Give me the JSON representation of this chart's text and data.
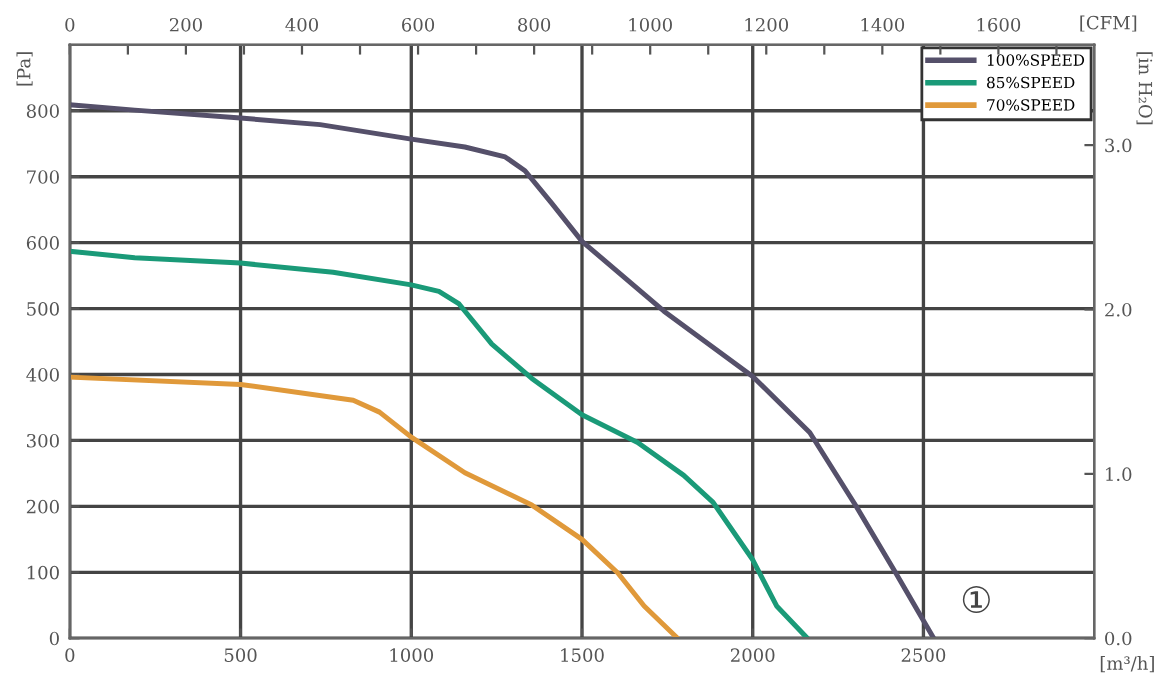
{
  "chart_data": {
    "type": "line",
    "xlabel": "[m³/h]",
    "ylabel": "[Pa]",
    "y2label": "[in H₂O]",
    "x2label": "[CFM]",
    "xlim": [
      0,
      3000
    ],
    "xticks": [
      0,
      500,
      1000,
      1500,
      2000,
      2500
    ],
    "ylim": [
      0,
      900
    ],
    "yticks": [
      0,
      100,
      200,
      300,
      400,
      500,
      600,
      700,
      800
    ],
    "y2lim": [
      0,
      3.61
    ],
    "y2ticks": [
      {
        "value": 0,
        "label": "0.0"
      },
      {
        "value": 1,
        "label": "1.0"
      },
      {
        "value": 2,
        "label": "2.0"
      },
      {
        "value": 3,
        "label": "3.0"
      }
    ],
    "x2lim": [
      0,
      1765
    ],
    "x2ticks": [
      0,
      {
        "value": 100,
        "label": null
      },
      200,
      {
        "value": 300,
        "label": null
      },
      400,
      {
        "value": 500,
        "label": null
      },
      600,
      {
        "value": 700,
        "label": null
      },
      800,
      {
        "value": 900,
        "label": null
      },
      1000,
      {
        "value": 1100,
        "label": null
      },
      1200,
      {
        "value": 1300,
        "label": null
      },
      1400,
      {
        "value": 1500,
        "label": null
      },
      1600,
      {
        "value": 1700,
        "label": null
      }
    ],
    "grid": true,
    "legend": "top right",
    "marker": "none",
    "line_style": "solid",
    "annotations": [
      "①"
    ],
    "series": [
      {
        "name": "100%SPEED",
        "color": "#55506a",
        "x": [
          0,
          190,
          500,
          733,
          1000,
          1157,
          1275,
          1333,
          1411,
          1500,
          1740,
          2000,
          2167,
          2302,
          2419,
          2530
        ],
        "values": [
          809,
          801,
          789,
          779,
          757,
          745,
          730,
          709,
          660,
          602,
          496,
          397,
          312,
          201,
          99,
          0
        ]
      },
      {
        "name": "85%SPEED",
        "color": "#1a9a78",
        "x": [
          0,
          190,
          500,
          771,
          1000,
          1081,
          1140,
          1236,
          1353,
          1500,
          1663,
          1798,
          1884,
          2000,
          2070,
          2160
        ],
        "values": [
          587,
          577,
          569,
          555,
          536,
          526,
          507,
          446,
          394,
          339,
          297,
          247,
          206,
          119,
          49,
          0
        ]
      },
      {
        "name": "70%SPEED",
        "color": "#e0993a",
        "x": [
          0,
          500,
          830,
          907,
          1000,
          1157,
          1353,
          1500,
          1605,
          1682,
          1780
        ],
        "values": [
          396,
          385,
          361,
          343,
          305,
          251,
          202,
          150,
          99,
          49,
          0
        ]
      }
    ]
  }
}
